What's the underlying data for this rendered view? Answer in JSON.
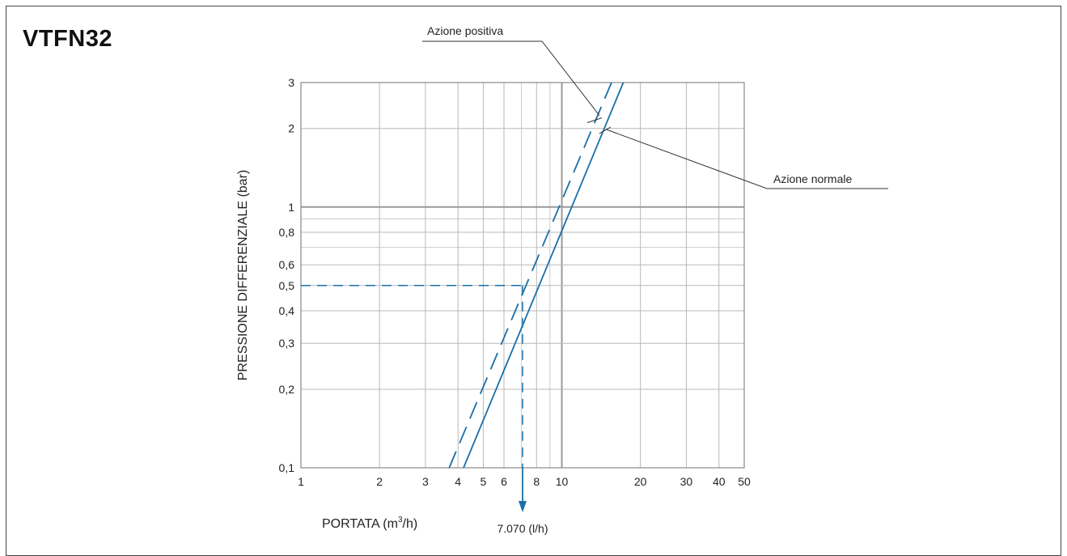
{
  "title": "VTFN32",
  "chart_data": {
    "type": "line",
    "title": "VTFN32",
    "xlabel": "PORTATA (m",
    "xlabel_sup": "3",
    "xlabel_tail": "/h)",
    "ylabel": "PRESSIONE DIFFERENZIALE (bar)",
    "x_scale": "log",
    "y_scale": "log",
    "xlim": [
      1,
      50
    ],
    "ylim": [
      0.1,
      3
    ],
    "x_ticks": [
      1,
      2,
      3,
      4,
      5,
      6,
      8,
      10,
      20,
      30,
      40,
      50
    ],
    "x_tick_labels": [
      "1",
      "2",
      "3",
      "4",
      "5",
      "6",
      "8",
      "10",
      "20",
      "30",
      "40",
      "50"
    ],
    "y_ticks": [
      0.1,
      0.2,
      0.3,
      0.4,
      0.5,
      0.6,
      0.8,
      1,
      2,
      3
    ],
    "y_tick_labels": [
      "0,1",
      "0,2",
      "0,3",
      "0,4",
      "0,5",
      "0,6",
      "0,8",
      "1",
      "2",
      "3"
    ],
    "grid": true,
    "series": [
      {
        "name": "Azione positiva",
        "style": "dashed",
        "x": [
          3.7,
          15.5
        ],
        "y": [
          0.1,
          3
        ]
      },
      {
        "name": "Azione normale",
        "style": "solid",
        "x": [
          4.2,
          17.2
        ],
        "y": [
          0.1,
          3
        ]
      }
    ],
    "annotations": [
      {
        "label": "Azione positiva",
        "series": 0
      },
      {
        "label": "Azione normale",
        "series": 1
      }
    ],
    "reading": {
      "x": 7.07,
      "y": 0.5,
      "label": "7.070 (l/h)"
    },
    "colors": {
      "series": "#1a6fa8",
      "grid": "#b8b8b8",
      "axis": "#888888",
      "leader": "#333333"
    }
  }
}
